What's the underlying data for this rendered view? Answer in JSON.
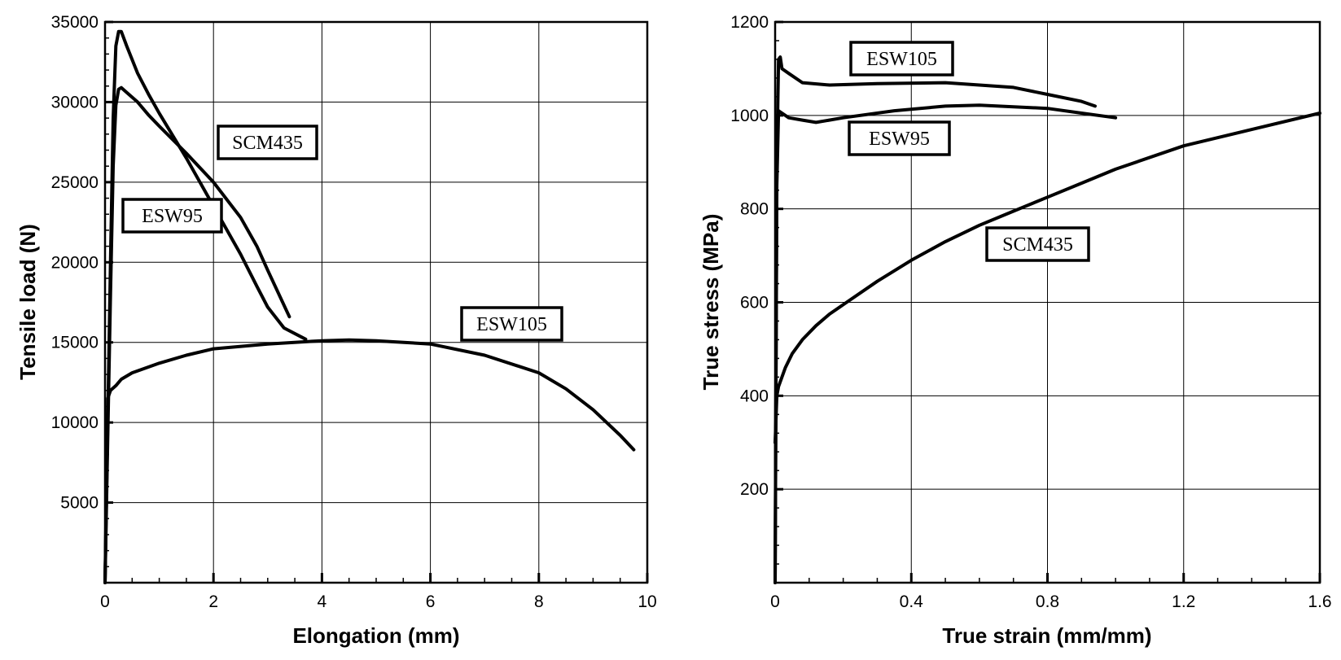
{
  "chart_data": [
    {
      "type": "line",
      "xlabel": "Elongation (mm)",
      "ylabel": "Tensile load (N)",
      "xlim": [
        0,
        10
      ],
      "ylim": [
        0,
        35000
      ],
      "grid": true,
      "xticks": [
        0,
        2,
        4,
        6,
        8,
        10
      ],
      "yticks": [
        5000,
        10000,
        15000,
        20000,
        25000,
        30000,
        35000
      ],
      "series": [
        {
          "name": "SCM435",
          "x": [
            0,
            0.05,
            0.1,
            0.15,
            0.2,
            0.25,
            0.3,
            0.4,
            0.6,
            0.8,
            1.0,
            1.5,
            2.0,
            2.5,
            2.8,
            3.0,
            3.3,
            3.7
          ],
          "y": [
            0,
            10000,
            20000,
            29000,
            33500,
            34400,
            34400,
            33500,
            31800,
            30500,
            29300,
            26500,
            23500,
            20500,
            18500,
            17200,
            15900,
            15200
          ]
        },
        {
          "name": "ESW95",
          "x": [
            0,
            0.05,
            0.1,
            0.15,
            0.2,
            0.25,
            0.3,
            0.4,
            0.6,
            0.8,
            1.0,
            1.5,
            2.0,
            2.5,
            2.8,
            3.0,
            3.4
          ],
          "y": [
            0,
            9000,
            18000,
            26000,
            29800,
            30800,
            30900,
            30600,
            30000,
            29200,
            28500,
            26800,
            25000,
            22800,
            21000,
            19500,
            16600
          ]
        },
        {
          "name": "ESW105",
          "x": [
            0,
            0.05,
            0.1,
            0.2,
            0.3,
            0.5,
            1.0,
            1.5,
            2.0,
            3.0,
            4.0,
            4.5,
            5.0,
            6.0,
            7.0,
            8.0,
            8.5,
            9.0,
            9.5,
            9.75
          ],
          "y": [
            0,
            11500,
            12000,
            12300,
            12700,
            13100,
            13700,
            14200,
            14600,
            14900,
            15100,
            15150,
            15100,
            14900,
            14200,
            13100,
            12100,
            10800,
            9200,
            8300
          ]
        }
      ],
      "annotations": [
        "SCM435",
        "ESW95",
        "ESW105"
      ]
    },
    {
      "type": "line",
      "xlabel": "True strain (mm/mm)",
      "ylabel": "True stress (MPa)",
      "xlim": [
        0,
        1.6
      ],
      "ylim": [
        0,
        1200
      ],
      "grid": true,
      "xticks": [
        "0",
        "0.4",
        "0.8",
        "1.2",
        "1.6"
      ],
      "yticks": [
        "200",
        "400",
        "600",
        "800",
        "1000",
        "1200"
      ],
      "series": [
        {
          "name": "ESW105",
          "x": [
            0,
            0.005,
            0.01,
            0.015,
            0.02,
            0.04,
            0.08,
            0.16,
            0.3,
            0.5,
            0.7,
            0.8,
            0.9,
            0.94
          ],
          "y": [
            0,
            900,
            1120,
            1125,
            1100,
            1090,
            1070,
            1065,
            1068,
            1070,
            1060,
            1045,
            1030,
            1020
          ]
        },
        {
          "name": "ESW95",
          "x": [
            0,
            0.005,
            0.01,
            0.02,
            0.04,
            0.08,
            0.12,
            0.2,
            0.35,
            0.5,
            0.6,
            0.8,
            0.9,
            1.0
          ],
          "y": [
            0,
            850,
            1010,
            1005,
            995,
            990,
            985,
            995,
            1010,
            1020,
            1022,
            1015,
            1005,
            995
          ]
        },
        {
          "name": "SCM435",
          "x": [
            0,
            0.005,
            0.01,
            0.03,
            0.05,
            0.08,
            0.12,
            0.16,
            0.2,
            0.3,
            0.4,
            0.5,
            0.6,
            0.7,
            0.8,
            0.9,
            1.0,
            1.2,
            1.4,
            1.6
          ],
          "y": [
            300,
            400,
            420,
            460,
            490,
            520,
            550,
            575,
            595,
            645,
            690,
            730,
            765,
            795,
            825,
            855,
            885,
            935,
            970,
            1005
          ]
        }
      ],
      "annotations": [
        "ESW105",
        "ESW95",
        "SCM435"
      ]
    }
  ]
}
